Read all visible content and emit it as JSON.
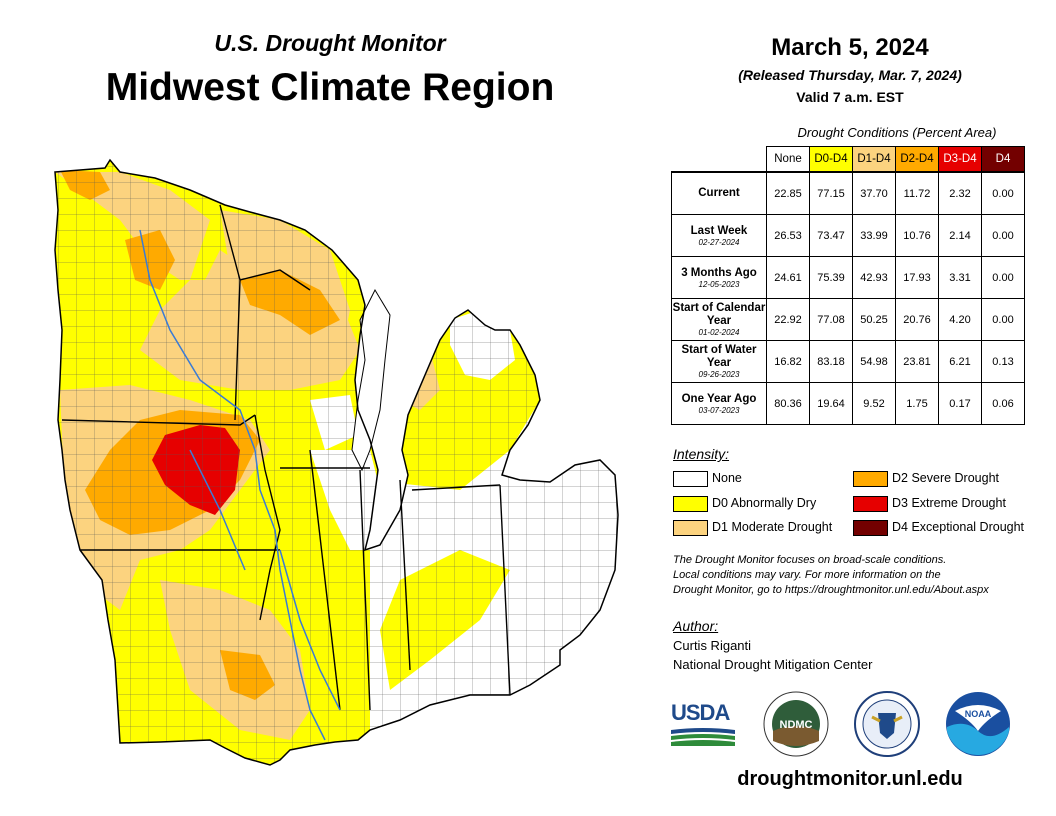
{
  "header": {
    "subtitle": "U.S. Drought Monitor",
    "title": "Midwest Climate Region"
  },
  "date": {
    "main": "March 5, 2024",
    "released": "(Released Thursday, Mar. 7, 2024)",
    "valid": "Valid 7 a.m. EST"
  },
  "conditions": {
    "title": "Drought Conditions (Percent Area)",
    "columns": [
      {
        "label": "None",
        "color": "#ffffff",
        "text": "#000000"
      },
      {
        "label": "D0-D4",
        "color": "#ffff00",
        "text": "#000000"
      },
      {
        "label": "D1-D4",
        "color": "#fcd37f",
        "text": "#000000"
      },
      {
        "label": "D2-D4",
        "color": "#ffaa00",
        "text": "#000000"
      },
      {
        "label": "D3-D4",
        "color": "#e60000",
        "text": "#ffffff"
      },
      {
        "label": "D4",
        "color": "#730000",
        "text": "#ffffff"
      }
    ],
    "rows": [
      {
        "label": "Current",
        "date": "",
        "values": [
          "22.85",
          "77.15",
          "37.70",
          "11.72",
          "2.32",
          "0.00"
        ]
      },
      {
        "label": "Last Week",
        "date": "02-27-2024",
        "values": [
          "26.53",
          "73.47",
          "33.99",
          "10.76",
          "2.14",
          "0.00"
        ]
      },
      {
        "label": "3 Months Ago",
        "date": "12-05-2023",
        "values": [
          "24.61",
          "75.39",
          "42.93",
          "17.93",
          "3.31",
          "0.00"
        ]
      },
      {
        "label": "Start of Calendar Year",
        "date": "01-02-2024",
        "values": [
          "22.92",
          "77.08",
          "50.25",
          "20.76",
          "4.20",
          "0.00"
        ]
      },
      {
        "label": "Start of Water Year",
        "date": "09-26-2023",
        "values": [
          "16.82",
          "83.18",
          "54.98",
          "23.81",
          "6.21",
          "0.13"
        ]
      },
      {
        "label": "One Year Ago",
        "date": "03-07-2023",
        "values": [
          "80.36",
          "19.64",
          "9.52",
          "1.75",
          "0.17",
          "0.06"
        ]
      }
    ]
  },
  "intensity": {
    "label": "Intensity:",
    "items": [
      {
        "label": "None",
        "color": "#ffffff"
      },
      {
        "label": "D0 Abnormally Dry",
        "color": "#ffff00"
      },
      {
        "label": "D1 Moderate Drought",
        "color": "#fcd37f"
      },
      {
        "label": "D2 Severe Drought",
        "color": "#ffaa00"
      },
      {
        "label": "D3 Extreme Drought",
        "color": "#e60000"
      },
      {
        "label": "D4 Exceptional Drought",
        "color": "#730000"
      }
    ]
  },
  "note": {
    "line1": "The Drought Monitor focuses on broad-scale conditions.",
    "line2": "Local conditions may vary. For more information on the",
    "line3": "Drought Monitor, go to https://droughtmonitor.unl.edu/About.aspx"
  },
  "author": {
    "label": "Author:",
    "name": "Curtis Riganti",
    "org": "National Drought Mitigation Center"
  },
  "logos": {
    "usda": "USDA",
    "ndmc": "NDMC",
    "noaa": "NOAA"
  },
  "website": "droughtmonitor.unl.edu"
}
